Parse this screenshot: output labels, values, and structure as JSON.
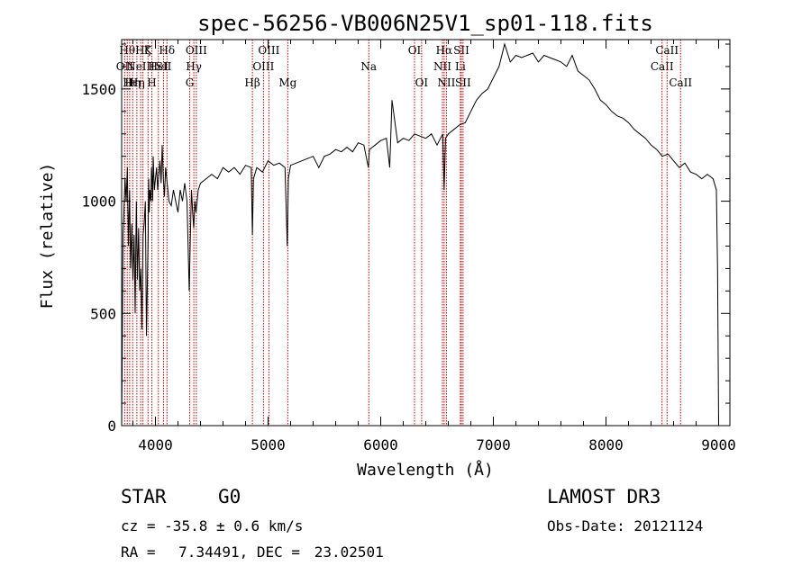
{
  "chart_data": {
    "type": "line",
    "title": "spec-56256-VB006N25V1_sp01-118.fits",
    "xlabel": "Wavelength (Å)",
    "ylabel": "Flux (relative)",
    "xlim": [
      3700,
      9100
    ],
    "ylim": [
      0,
      1720
    ],
    "xticks": [
      4000,
      5000,
      6000,
      7000,
      8000,
      9000
    ],
    "yticks": [
      0,
      500,
      1000,
      1500
    ],
    "series": [
      {
        "name": "spectrum",
        "x": [
          3700,
          3705,
          3712,
          3720,
          3730,
          3740,
          3750,
          3760,
          3770,
          3780,
          3790,
          3800,
          3810,
          3820,
          3830,
          3840,
          3850,
          3860,
          3870,
          3880,
          3890,
          3900,
          3910,
          3920,
          3930,
          3935,
          3940,
          3945,
          3950,
          3960,
          3965,
          3970,
          3975,
          3980,
          3990,
          4000,
          4010,
          4020,
          4030,
          4040,
          4050,
          4060,
          4070,
          4080,
          4090,
          4100,
          4110,
          4120,
          4140,
          4160,
          4180,
          4200,
          4220,
          4240,
          4260,
          4280,
          4300,
          4310,
          4320,
          4330,
          4340,
          4350,
          4360,
          4380,
          4400,
          4450,
          4500,
          4550,
          4600,
          4650,
          4700,
          4750,
          4800,
          4850,
          4861,
          4870,
          4900,
          4950,
          5000,
          5050,
          5100,
          5150,
          5170,
          5180,
          5200,
          5250,
          5300,
          5350,
          5400,
          5450,
          5500,
          5550,
          5600,
          5650,
          5700,
          5750,
          5800,
          5850,
          5890,
          5900,
          5950,
          6000,
          6050,
          6080,
          6100,
          6150,
          6200,
          6250,
          6300,
          6350,
          6400,
          6450,
          6500,
          6550,
          6563,
          6575,
          6600,
          6650,
          6700,
          6750,
          6800,
          6850,
          6900,
          6950,
          7000,
          7050,
          7100,
          7150,
          7200,
          7250,
          7300,
          7350,
          7400,
          7450,
          7500,
          7550,
          7600,
          7650,
          7700,
          7750,
          7800,
          7850,
          7900,
          7950,
          8000,
          8050,
          8100,
          8150,
          8200,
          8250,
          8300,
          8350,
          8400,
          8450,
          8500,
          8550,
          8600,
          8650,
          8700,
          8750,
          8800,
          8850,
          8900,
          8950,
          8980,
          8990,
          9000
        ],
        "values": [
          0,
          300,
          850,
          950,
          1100,
          1000,
          1150,
          800,
          1050,
          700,
          900,
          650,
          850,
          500,
          1000,
          650,
          880,
          600,
          700,
          430,
          850,
          900,
          1000,
          400,
          700,
          850,
          1100,
          950,
          1050,
          1000,
          1150,
          1100,
          1000,
          1200,
          1050,
          1100,
          1150,
          1050,
          1120,
          1180,
          1080,
          1250,
          1100,
          1020,
          1150,
          1100,
          1050,
          1000,
          980,
          1050,
          1000,
          950,
          1050,
          1000,
          1080,
          1000,
          600,
          850,
          1050,
          950,
          880,
          1000,
          950,
          1050,
          1080,
          1100,
          1120,
          1100,
          1150,
          1130,
          1150,
          1120,
          1160,
          1150,
          850,
          1100,
          1150,
          1130,
          1180,
          1160,
          1170,
          1150,
          800,
          1100,
          1160,
          1170,
          1180,
          1190,
          1200,
          1150,
          1200,
          1210,
          1230,
          1220,
          1240,
          1220,
          1260,
          1250,
          1150,
          1230,
          1250,
          1270,
          1280,
          1150,
          1450,
          1260,
          1280,
          1270,
          1300,
          1290,
          1280,
          1300,
          1250,
          1300,
          1050,
          1280,
          1300,
          1320,
          1340,
          1350,
          1400,
          1450,
          1480,
          1500,
          1550,
          1600,
          1700,
          1620,
          1650,
          1640,
          1650,
          1660,
          1620,
          1650,
          1640,
          1630,
          1620,
          1600,
          1650,
          1580,
          1560,
          1540,
          1500,
          1450,
          1430,
          1400,
          1380,
          1370,
          1350,
          1320,
          1300,
          1280,
          1250,
          1230,
          1200,
          1210,
          1180,
          1150,
          1170,
          1130,
          1120,
          1100,
          1120,
          1100,
          1050,
          700,
          0
        ]
      }
    ],
    "line_markers": [
      {
        "wl": 3727,
        "label": "OII",
        "row": 1
      },
      {
        "wl": 3750,
        "label": "Hθ",
        "row": 0
      },
      {
        "wl": 3771,
        "label": "Hι",
        "row": 2
      },
      {
        "wl": 3798,
        "label": "Hη",
        "row": 2
      },
      {
        "wl": 3835,
        "label": "Hη",
        "row": 2
      },
      {
        "wl": 3869,
        "label": "NeIII",
        "row": 1
      },
      {
        "wl": 3889,
        "label": "Hζ",
        "row": 0
      },
      {
        "wl": 3934,
        "label": "K",
        "row": 0
      },
      {
        "wl": 3968,
        "label": "H",
        "row": 2
      },
      {
        "wl": 4026,
        "label": "HeI",
        "row": 1
      },
      {
        "wl": 4072,
        "label": "SII",
        "row": 1
      },
      {
        "wl": 4102,
        "label": "Hδ",
        "row": 0
      },
      {
        "wl": 4304,
        "label": "G",
        "row": 2
      },
      {
        "wl": 4341,
        "label": "Hγ",
        "row": 1
      },
      {
        "wl": 4363,
        "label": "OIII",
        "row": 0
      },
      {
        "wl": 4861,
        "label": "Hβ",
        "row": 2
      },
      {
        "wl": 4959,
        "label": "OIII",
        "row": 1
      },
      {
        "wl": 5007,
        "label": "OIII",
        "row": 0
      },
      {
        "wl": 5175,
        "label": "Mg",
        "row": 2
      },
      {
        "wl": 5894,
        "label": "Na",
        "row": 1
      },
      {
        "wl": 6300,
        "label": "OI",
        "row": 0
      },
      {
        "wl": 6363,
        "label": "OI",
        "row": 2
      },
      {
        "wl": 6548,
        "label": "NII",
        "row": 1
      },
      {
        "wl": 6563,
        "label": "Hα",
        "row": 0
      },
      {
        "wl": 6583,
        "label": "NII",
        "row": 2
      },
      {
        "wl": 6707,
        "label": "Li",
        "row": 1
      },
      {
        "wl": 6716,
        "label": "SII",
        "row": 0
      },
      {
        "wl": 6731,
        "label": "SII",
        "row": 2
      },
      {
        "wl": 8498,
        "label": "CaII",
        "row": 1
      },
      {
        "wl": 8542,
        "label": "CaII",
        "row": 0
      },
      {
        "wl": 8662,
        "label": "CaII",
        "row": 2
      }
    ]
  },
  "info": {
    "object_class": "STAR",
    "subclass": "G0",
    "survey": "LAMOST DR3",
    "cz_label": "cz = ",
    "cz_value": "-35.8",
    "cz_pm": "±",
    "cz_error": "0.6",
    "cz_unit": "km/s",
    "obs_date_label": "Obs-Date:",
    "obs_date": "20121124",
    "ra_label": "RA =",
    "ra": "7.34491",
    "dec_label": "DEC =",
    "dec": "23.02501"
  },
  "colors": {
    "spectrum": "#000000",
    "marker_line": "#c00000",
    "axis": "#000000"
  }
}
